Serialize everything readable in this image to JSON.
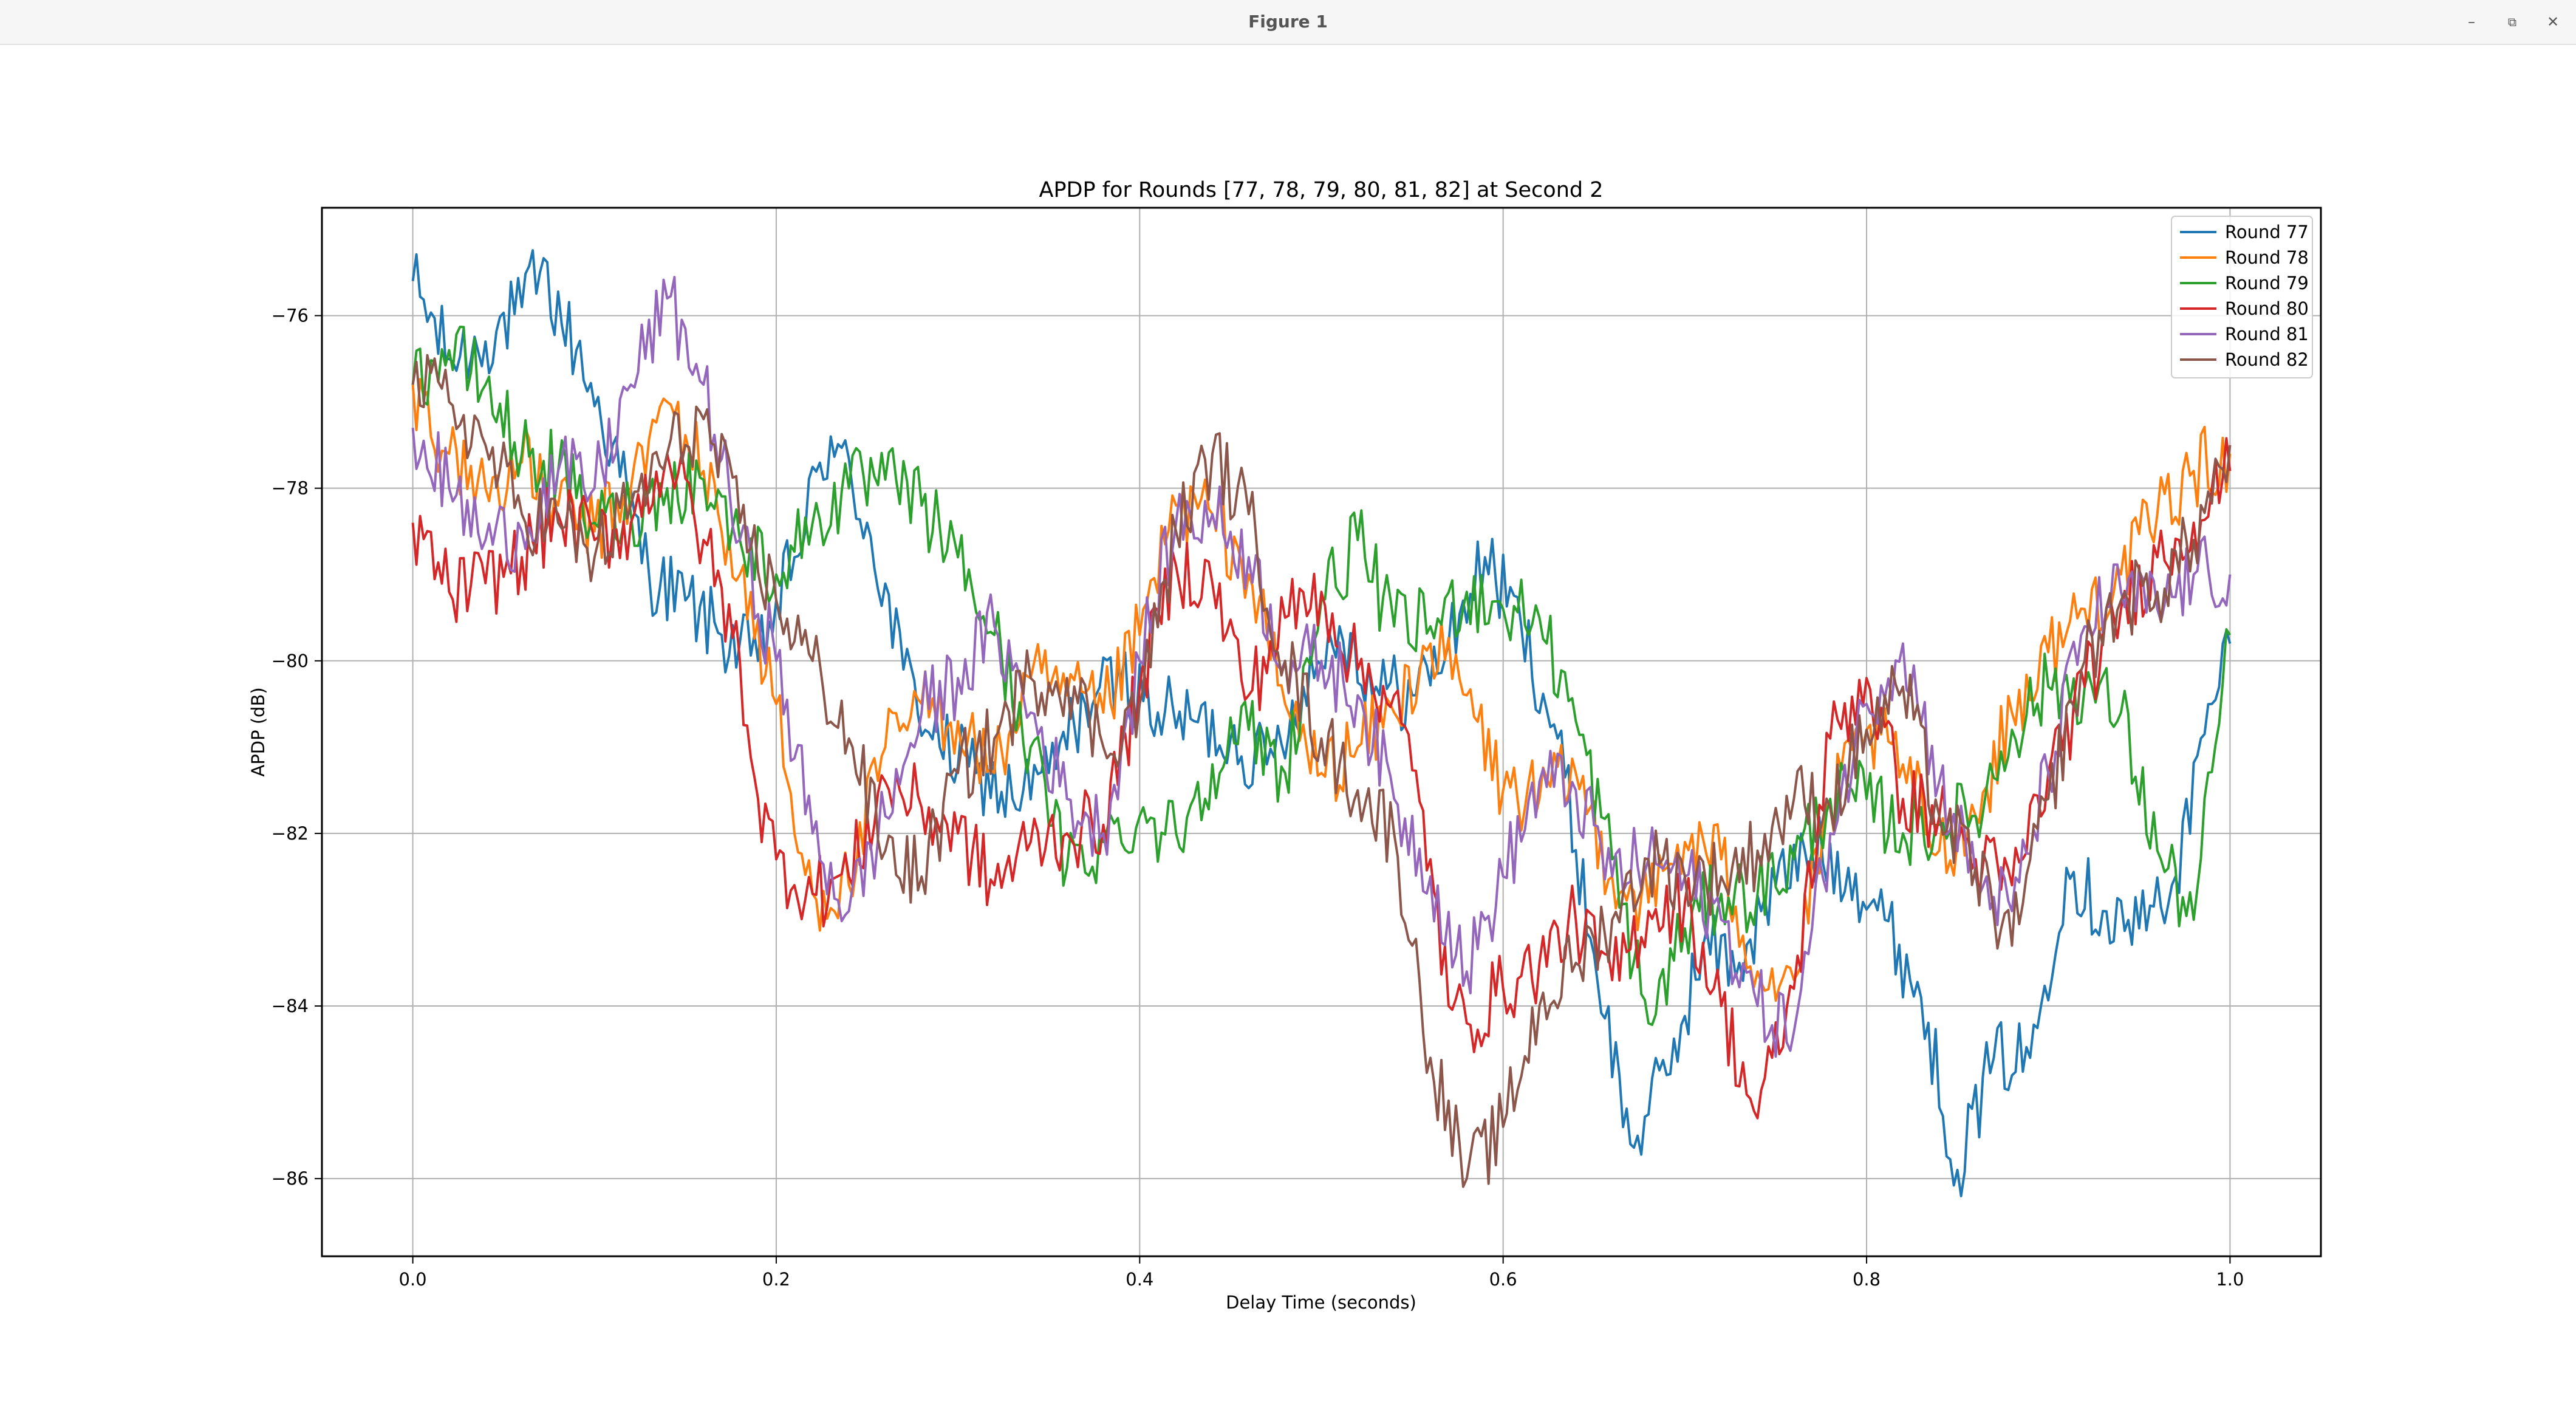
{
  "window": {
    "title": "Figure 1",
    "controls": {
      "minimize": "–",
      "maximize": "⧉",
      "close": "✕"
    }
  },
  "chart_data": {
    "type": "line",
    "title": "APDP for Rounds [77, 78, 79, 80, 81, 82] at Second 2",
    "xlabel": "Delay Time (seconds)",
    "ylabel": "APDP (dB)",
    "xlim": [
      -0.05,
      1.05
    ],
    "ylim": [
      -86.9,
      -74.75
    ],
    "xticks": [
      0.0,
      0.2,
      0.4,
      0.6,
      0.8,
      1.0
    ],
    "xtick_labels": [
      "0.0",
      "0.2",
      "0.4",
      "0.6",
      "0.8",
      "1.0"
    ],
    "yticks": [
      -86,
      -84,
      -82,
      -80,
      -78,
      -76
    ],
    "ytick_labels": [
      "−86",
      "−84",
      "−82",
      "−80",
      "−78",
      "−76"
    ],
    "grid": true,
    "legend_position": "top-right",
    "series": [
      {
        "name": "Round 77",
        "color": "#1f77b4",
        "x": [
          0.0,
          0.02,
          0.04,
          0.06,
          0.07,
          0.09,
          0.11,
          0.13,
          0.15,
          0.17,
          0.19,
          0.21,
          0.23,
          0.25,
          0.27,
          0.29,
          0.31,
          0.33,
          0.35,
          0.37,
          0.39,
          0.41,
          0.43,
          0.45,
          0.47,
          0.49,
          0.51,
          0.53,
          0.55,
          0.57,
          0.59,
          0.61,
          0.63,
          0.65,
          0.67,
          0.69,
          0.71,
          0.73,
          0.75,
          0.77,
          0.79,
          0.81,
          0.83,
          0.85,
          0.87,
          0.89,
          0.91,
          0.93,
          0.95,
          0.97,
          0.99,
          1.0
        ],
        "y": [
          -75.6,
          -76.5,
          -76.3,
          -75.9,
          -75.5,
          -76.4,
          -77.5,
          -79.0,
          -79.3,
          -79.7,
          -80.0,
          -78.8,
          -77.4,
          -78.4,
          -80.1,
          -81.0,
          -81.3,
          -81.6,
          -81.3,
          -80.5,
          -80.2,
          -80.6,
          -80.7,
          -80.9,
          -81.2,
          -80.3,
          -79.6,
          -80.3,
          -80.4,
          -79.8,
          -78.8,
          -79.6,
          -80.9,
          -83.4,
          -85.6,
          -84.8,
          -83.3,
          -83.5,
          -82.6,
          -82.2,
          -82.4,
          -83.0,
          -83.9,
          -85.9,
          -84.6,
          -84.6,
          -82.4,
          -82.9,
          -83.1,
          -82.5,
          -80.5,
          -79.8
        ]
      },
      {
        "name": "Round 78",
        "color": "#ff7f0e",
        "x": [
          0.0,
          0.02,
          0.04,
          0.06,
          0.08,
          0.1,
          0.12,
          0.14,
          0.16,
          0.18,
          0.2,
          0.21,
          0.22,
          0.24,
          0.26,
          0.28,
          0.3,
          0.32,
          0.34,
          0.36,
          0.38,
          0.4,
          0.42,
          0.44,
          0.46,
          0.48,
          0.5,
          0.52,
          0.54,
          0.56,
          0.58,
          0.6,
          0.62,
          0.64,
          0.66,
          0.68,
          0.7,
          0.72,
          0.74,
          0.76,
          0.78,
          0.8,
          0.82,
          0.84,
          0.86,
          0.88,
          0.9,
          0.92,
          0.94,
          0.96,
          0.98,
          1.0
        ],
        "y": [
          -76.8,
          -77.6,
          -78.0,
          -77.7,
          -78.2,
          -78.5,
          -78.0,
          -77.0,
          -77.8,
          -79.0,
          -80.5,
          -82.0,
          -82.7,
          -82.6,
          -81.0,
          -80.5,
          -80.7,
          -81.3,
          -80.2,
          -80.4,
          -80.6,
          -79.7,
          -78.2,
          -78.3,
          -79.0,
          -80.5,
          -81.3,
          -81.0,
          -80.6,
          -79.8,
          -80.4,
          -81.5,
          -81.6,
          -81.3,
          -82.5,
          -82.8,
          -82.1,
          -82.3,
          -83.6,
          -83.7,
          -81.7,
          -80.8,
          -81.2,
          -82.2,
          -81.8,
          -80.6,
          -79.9,
          -79.4,
          -79.0,
          -78.3,
          -77.8,
          -77.6
        ]
      },
      {
        "name": "Round 79",
        "color": "#2ca02c",
        "x": [
          0.0,
          0.02,
          0.04,
          0.06,
          0.08,
          0.1,
          0.12,
          0.14,
          0.16,
          0.18,
          0.2,
          0.22,
          0.24,
          0.26,
          0.28,
          0.3,
          0.32,
          0.34,
          0.36,
          0.38,
          0.4,
          0.42,
          0.44,
          0.46,
          0.48,
          0.5,
          0.52,
          0.54,
          0.56,
          0.58,
          0.6,
          0.62,
          0.64,
          0.66,
          0.68,
          0.7,
          0.72,
          0.74,
          0.76,
          0.78,
          0.8,
          0.82,
          0.84,
          0.86,
          0.88,
          0.9,
          0.92,
          0.94,
          0.96,
          0.98,
          1.0
        ],
        "y": [
          -76.8,
          -76.4,
          -76.8,
          -77.6,
          -77.8,
          -78.4,
          -78.3,
          -78.0,
          -77.9,
          -78.6,
          -79.0,
          -78.4,
          -78.0,
          -77.9,
          -78.2,
          -78.8,
          -79.7,
          -81.0,
          -82.4,
          -82.1,
          -81.8,
          -82.0,
          -81.2,
          -80.8,
          -81.3,
          -79.3,
          -78.6,
          -79.6,
          -79.6,
          -79.2,
          -79.4,
          -79.5,
          -80.7,
          -82.3,
          -84.2,
          -83.1,
          -82.7,
          -82.7,
          -82.3,
          -81.6,
          -81.6,
          -82.0,
          -81.9,
          -81.8,
          -80.8,
          -80.3,
          -80.3,
          -80.6,
          -82.2,
          -83.0,
          -79.7
        ]
      },
      {
        "name": "Round 80",
        "color": "#d62728",
        "x": [
          0.0,
          0.02,
          0.04,
          0.06,
          0.08,
          0.1,
          0.12,
          0.14,
          0.16,
          0.18,
          0.19,
          0.2,
          0.22,
          0.24,
          0.26,
          0.28,
          0.3,
          0.32,
          0.34,
          0.36,
          0.38,
          0.4,
          0.42,
          0.44,
          0.46,
          0.48,
          0.5,
          0.52,
          0.54,
          0.56,
          0.57,
          0.58,
          0.6,
          0.62,
          0.64,
          0.66,
          0.68,
          0.7,
          0.72,
          0.74,
          0.76,
          0.78,
          0.8,
          0.82,
          0.84,
          0.86,
          0.88,
          0.9,
          0.92,
          0.94,
          0.96,
          0.98,
          1.0
        ],
        "y": [
          -78.4,
          -79.2,
          -79.1,
          -78.8,
          -78.3,
          -78.6,
          -78.4,
          -77.6,
          -78.6,
          -80.0,
          -81.6,
          -82.3,
          -82.7,
          -82.5,
          -81.4,
          -81.7,
          -82.0,
          -82.6,
          -82.1,
          -82.0,
          -81.9,
          -80.3,
          -78.9,
          -79.1,
          -80.4,
          -79.5,
          -79.2,
          -80.1,
          -80.4,
          -82.3,
          -84.0,
          -84.2,
          -83.8,
          -83.5,
          -83.0,
          -83.7,
          -82.9,
          -82.8,
          -84.0,
          -85.3,
          -83.8,
          -80.9,
          -80.2,
          -81.6,
          -81.8,
          -82.3,
          -82.6,
          -81.3,
          -80.3,
          -79.4,
          -78.8,
          -78.4,
          -77.8
        ]
      },
      {
        "name": "Round 81",
        "color": "#9467bd",
        "x": [
          0.0,
          0.02,
          0.04,
          0.06,
          0.08,
          0.1,
          0.12,
          0.14,
          0.16,
          0.18,
          0.2,
          0.22,
          0.24,
          0.26,
          0.28,
          0.3,
          0.32,
          0.34,
          0.36,
          0.38,
          0.4,
          0.42,
          0.44,
          0.46,
          0.48,
          0.5,
          0.52,
          0.54,
          0.56,
          0.58,
          0.6,
          0.62,
          0.64,
          0.66,
          0.68,
          0.7,
          0.72,
          0.74,
          0.76,
          0.78,
          0.8,
          0.82,
          0.84,
          0.86,
          0.88,
          0.9,
          0.92,
          0.94,
          0.96,
          0.98,
          1.0
        ],
        "y": [
          -77.3,
          -78.0,
          -78.6,
          -78.5,
          -77.8,
          -78.0,
          -76.8,
          -75.8,
          -76.8,
          -78.6,
          -80.0,
          -82.0,
          -82.9,
          -81.8,
          -80.6,
          -80.2,
          -79.6,
          -80.6,
          -81.6,
          -82.0,
          -80.0,
          -78.4,
          -78.3,
          -78.8,
          -80.0,
          -80.0,
          -80.4,
          -81.6,
          -82.5,
          -83.6,
          -82.5,
          -81.4,
          -81.5,
          -82.5,
          -82.3,
          -82.5,
          -83.0,
          -84.0,
          -84.3,
          -82.0,
          -80.5,
          -79.8,
          -81.4,
          -82.5,
          -82.9,
          -81.3,
          -79.6,
          -79.2,
          -79.4,
          -79.0,
          -79.0
        ]
      },
      {
        "name": "Round 82",
        "color": "#8c564b",
        "x": [
          0.0,
          0.02,
          0.04,
          0.06,
          0.08,
          0.1,
          0.12,
          0.14,
          0.16,
          0.18,
          0.2,
          0.22,
          0.24,
          0.26,
          0.28,
          0.3,
          0.32,
          0.34,
          0.36,
          0.38,
          0.4,
          0.42,
          0.44,
          0.46,
          0.48,
          0.5,
          0.52,
          0.54,
          0.55,
          0.56,
          0.58,
          0.6,
          0.62,
          0.64,
          0.66,
          0.68,
          0.7,
          0.72,
          0.74,
          0.76,
          0.78,
          0.8,
          0.82,
          0.84,
          0.86,
          0.88,
          0.9,
          0.92,
          0.94,
          0.96,
          0.98,
          1.0
        ],
        "y": [
          -76.8,
          -77.0,
          -77.5,
          -78.3,
          -78.4,
          -78.8,
          -78.2,
          -77.6,
          -77.2,
          -78.4,
          -79.3,
          -80.0,
          -80.9,
          -82.2,
          -82.5,
          -81.3,
          -80.9,
          -80.2,
          -80.2,
          -81.0,
          -80.5,
          -78.5,
          -77.6,
          -78.3,
          -80.0,
          -80.9,
          -81.5,
          -82.0,
          -83.3,
          -84.6,
          -86.0,
          -85.4,
          -84.0,
          -83.5,
          -83.0,
          -82.3,
          -82.5,
          -82.5,
          -82.2,
          -81.6,
          -81.7,
          -80.8,
          -80.3,
          -81.8,
          -82.4,
          -83.3,
          -81.6,
          -80.0,
          -79.3,
          -79.2,
          -78.6,
          -77.5
        ]
      }
    ]
  }
}
